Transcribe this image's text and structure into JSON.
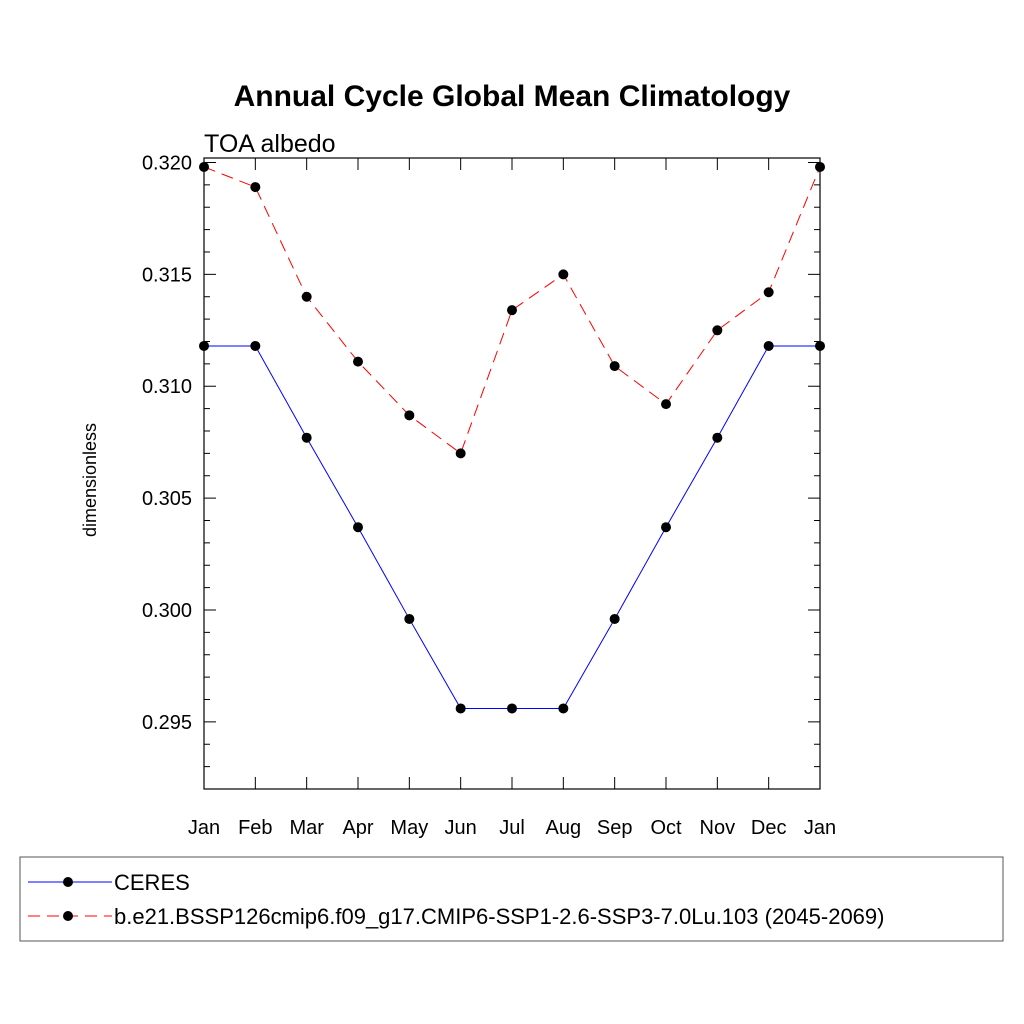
{
  "chart_data": {
    "type": "line",
    "title": "Annual Cycle Global Mean Climatology",
    "subtitle": "TOA albedo",
    "xlabel": "",
    "ylabel": "dimensionless",
    "categories": [
      "Jan",
      "Feb",
      "Mar",
      "Apr",
      "May",
      "Jun",
      "Jul",
      "Aug",
      "Sep",
      "Oct",
      "Nov",
      "Dec",
      "Jan"
    ],
    "ylim": [
      0.292,
      0.3202
    ],
    "yticks": [
      "0.295",
      "0.300",
      "0.305",
      "0.310",
      "0.315",
      "0.320"
    ],
    "grid": false,
    "legend_position": "bottom",
    "series": [
      {
        "name": "CERES",
        "color": "#0000ff",
        "dash": "solid",
        "values": [
          0.3118,
          0.3118,
          0.3077,
          0.3037,
          0.2996,
          0.2956,
          0.2956,
          0.2956,
          0.2996,
          0.3037,
          0.3077,
          0.3118,
          0.3118
        ]
      },
      {
        "name": "b.e21.BSSP126cmip6.f09_g17.CMIP6-SSP1-2.6-SSP3-7.0Lu.103 (2045-2069)",
        "color": "#ff0000",
        "dash": "dashed",
        "values": [
          0.3198,
          0.3189,
          0.314,
          0.3111,
          0.3087,
          0.307,
          0.3134,
          0.315,
          0.3109,
          0.3092,
          0.3125,
          0.3142,
          0.3198
        ]
      }
    ]
  }
}
